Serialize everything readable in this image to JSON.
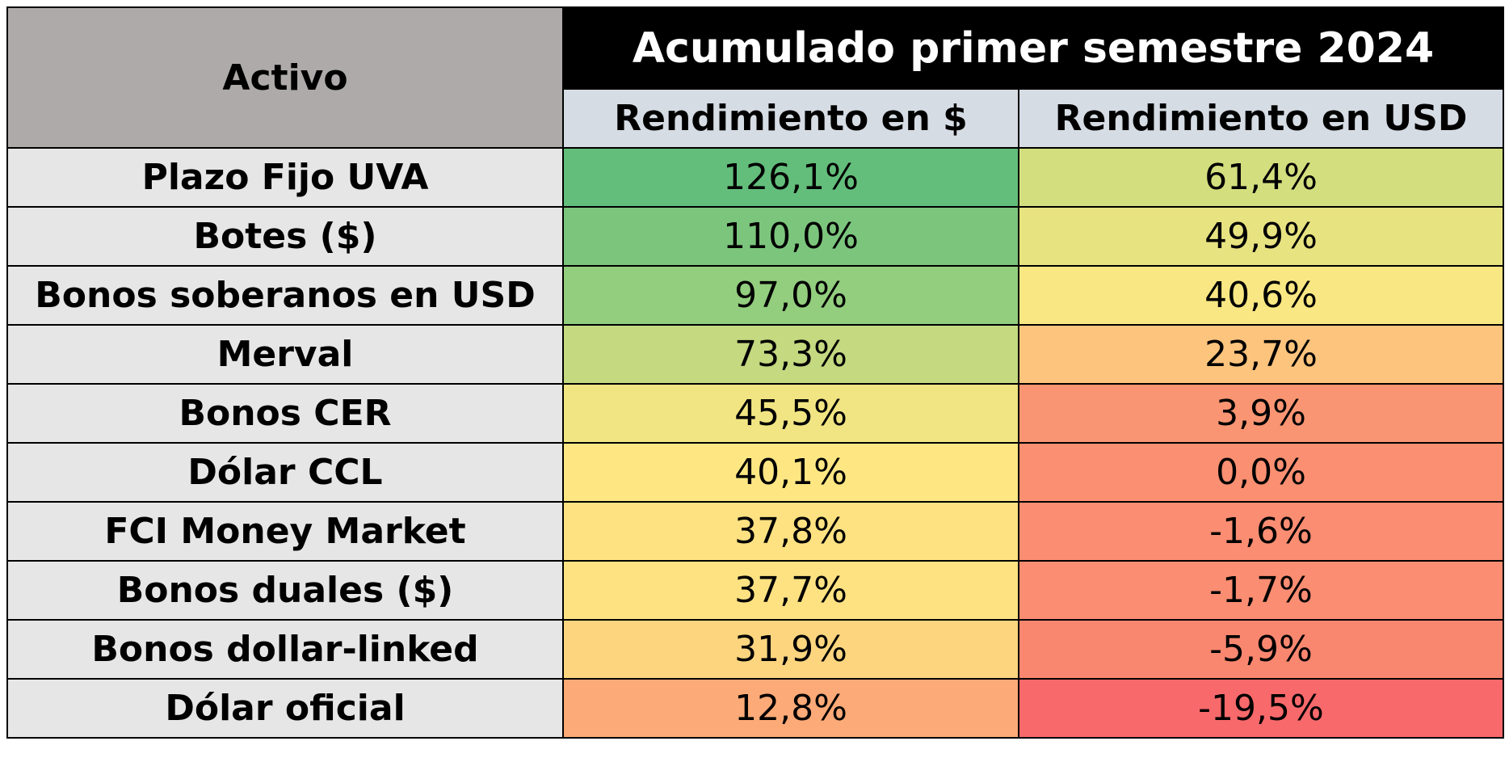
{
  "table": {
    "activo_header": "Activo",
    "title": "Acumulado primer semestre 2024",
    "col_ars_header": "Rendimiento en $",
    "col_usd_header": "Rendimiento en USD",
    "colors": {
      "activo_header_bg": "#aeaaaa",
      "title_bg": "#000000",
      "title_text": "#ffffff",
      "subheader_bg": "#d6dce4",
      "row_label_bg": "#e7e6e6"
    }
  },
  "chart_data": {
    "type": "table",
    "title": "Acumulado primer semestre 2024",
    "columns": [
      "Activo",
      "Rendimiento en $",
      "Rendimiento en USD"
    ],
    "rows": [
      {
        "activo": "Plazo Fijo UVA",
        "ars": 126.1,
        "usd": 61.4,
        "ars_text": "126,1%",
        "usd_text": "61,4%",
        "ars_color": "#63be7b",
        "usd_color": "#d3df7e"
      },
      {
        "activo": "Botes ($)",
        "ars": 110.0,
        "usd": 49.9,
        "ars_text": "110,0%",
        "usd_text": "49,9%",
        "ars_color": "#7cc57d",
        "usd_color": "#e8e381"
      },
      {
        "activo": "Bonos soberanos en USD",
        "ars": 97.0,
        "usd": 40.6,
        "ars_text": "97,0%",
        "usd_text": "40,6%",
        "ars_color": "#93cd7e",
        "usd_color": "#f9e783"
      },
      {
        "activo": "Merval",
        "ars": 73.3,
        "usd": 23.7,
        "ars_text": "73,3%",
        "usd_text": "23,7%",
        "ars_color": "#c4d980",
        "usd_color": "#fdc47d"
      },
      {
        "activo": "Bonos CER",
        "ars": 45.5,
        "usd": 3.9,
        "ars_text": "45,5%",
        "usd_text": "3,9%",
        "ars_color": "#f1e583",
        "usd_color": "#fa9573"
      },
      {
        "activo": "Dólar CCL",
        "ars": 40.1,
        "usd": 0.0,
        "ars_text": "40,1%",
        "usd_text": "0,0%",
        "ars_color": "#fee783",
        "usd_color": "#fa8f72"
      },
      {
        "activo": "FCI Money Market",
        "ars": 37.8,
        "usd": -1.6,
        "ars_text": "37,8%",
        "usd_text": "-1,6%",
        "ars_color": "#fee282",
        "usd_color": "#fa8d72"
      },
      {
        "activo": "Bonos duales ($)",
        "ars": 37.7,
        "usd": -1.7,
        "ars_text": "37,7%",
        "usd_text": "-1,7%",
        "ars_color": "#fee282",
        "usd_color": "#fa8d72"
      },
      {
        "activo": "Bonos dollar-linked",
        "ars": 31.9,
        "usd": -5.9,
        "ars_text": "31,9%",
        "usd_text": "-5,9%",
        "ars_color": "#fdd57f",
        "usd_color": "#f98770"
      },
      {
        "activo": "Dólar oficial",
        "ars": 12.8,
        "usd": -19.5,
        "ars_text": "12,8%",
        "usd_text": "-19,5%",
        "ars_color": "#fcaa77",
        "usd_color": "#f8696b"
      }
    ]
  }
}
